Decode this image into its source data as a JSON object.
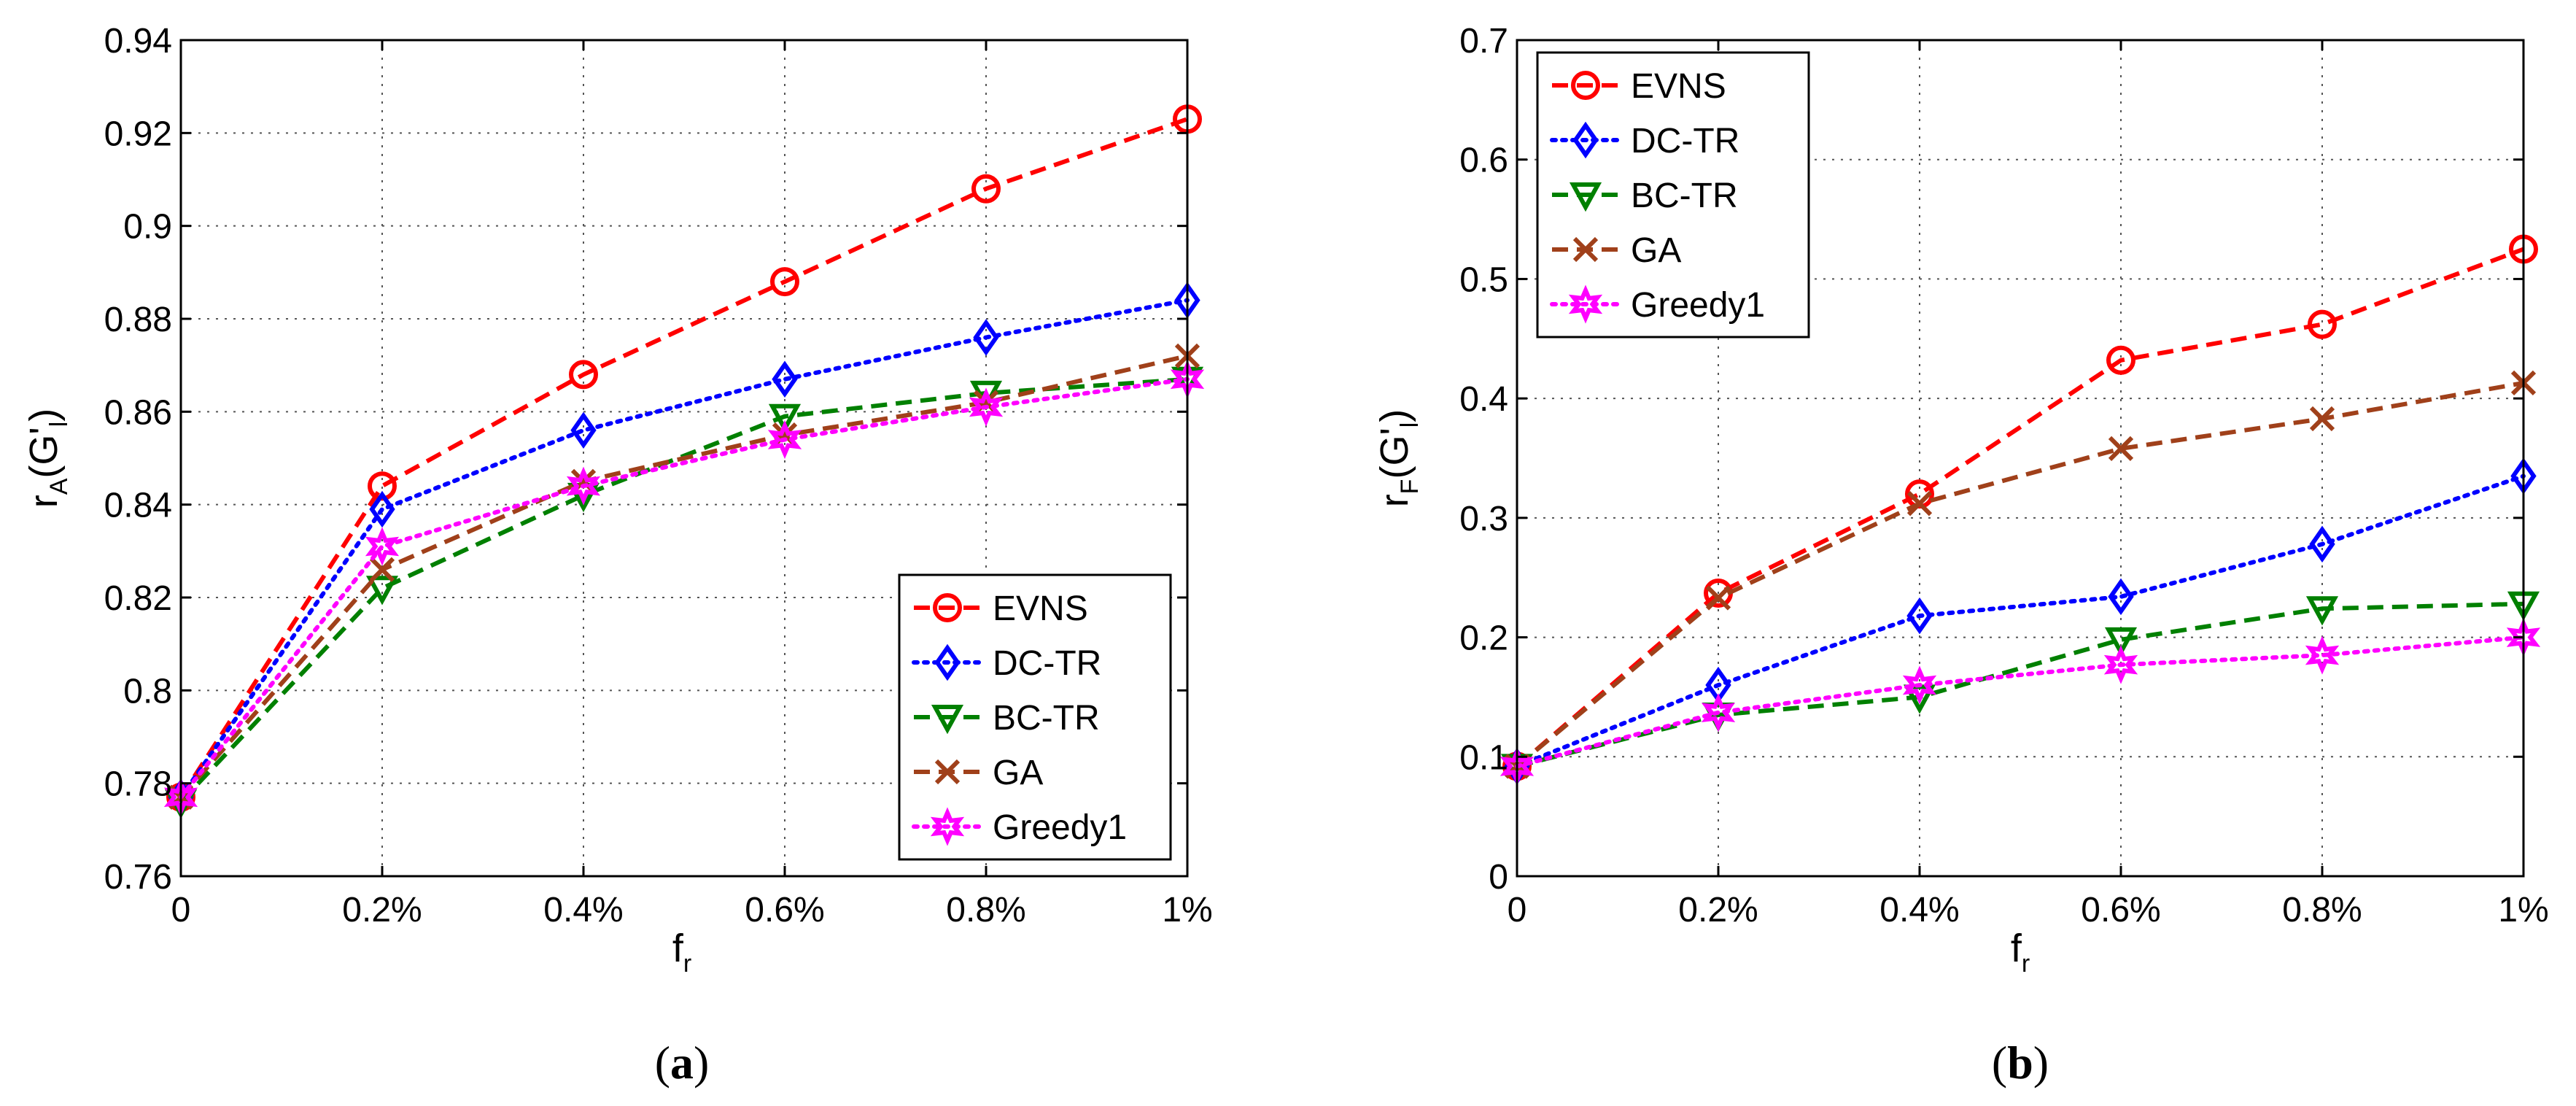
{
  "colors": {
    "EVNS": "#ff0000",
    "DC-TR": "#0000ff",
    "BC-TR": "#008000",
    "GA": "#a0401a",
    "Greedy1": "#ff00ff"
  },
  "chart_data": [
    {
      "type": "line",
      "caption_letter": "a",
      "caption_open": "(",
      "caption_close": ")",
      "xlabel_main": "f",
      "xlabel_sub": "r",
      "ylabel_main": "r",
      "ylabel_sub": "A",
      "ylabel_arg": "(G'",
      "ylabel_arg_sub": "l",
      "ylabel_close": ")",
      "categories": [
        "0",
        "0.2%",
        "0.4%",
        "0.6%",
        "0.8%",
        "1%"
      ],
      "ylim": [
        0.76,
        0.94
      ],
      "yticks": [
        0.76,
        0.78,
        0.8,
        0.82,
        0.84,
        0.86,
        0.88,
        0.9,
        0.92,
        0.94
      ],
      "ytick_labels": [
        "0.76",
        "0.78",
        "0.8",
        "0.82",
        "0.84",
        "0.86",
        "0.88",
        "0.9",
        "0.92",
        "0.94"
      ],
      "grid": true,
      "legend_position": "bottom-right",
      "series": [
        {
          "name": "EVNS",
          "marker": "circle",
          "dash": "dashed",
          "values": [
            0.777,
            0.844,
            0.868,
            0.888,
            0.908,
            0.923
          ]
        },
        {
          "name": "DC-TR",
          "marker": "diamond",
          "dash": "dotted",
          "values": [
            0.777,
            0.839,
            0.856,
            0.867,
            0.876,
            0.884
          ]
        },
        {
          "name": "BC-TR",
          "marker": "triangle-down",
          "dash": "dashed",
          "values": [
            0.776,
            0.822,
            0.842,
            0.859,
            0.864,
            0.867
          ]
        },
        {
          "name": "GA",
          "marker": "x",
          "dash": "dashed",
          "values": [
            0.777,
            0.826,
            0.845,
            0.855,
            0.862,
            0.872
          ]
        },
        {
          "name": "Greedy1",
          "marker": "star",
          "dash": "dotted",
          "values": [
            0.777,
            0.831,
            0.844,
            0.854,
            0.861,
            0.867
          ]
        }
      ]
    },
    {
      "type": "line",
      "caption_letter": "b",
      "caption_open": "(",
      "caption_close": ")",
      "xlabel_main": "f",
      "xlabel_sub": "r",
      "ylabel_main": "r",
      "ylabel_sub": "F",
      "ylabel_arg": "(G'",
      "ylabel_arg_sub": "l",
      "ylabel_close": ")",
      "categories": [
        "0",
        "0.2%",
        "0.4%",
        "0.6%",
        "0.8%",
        "1%"
      ],
      "ylim": [
        0,
        0.7
      ],
      "yticks": [
        0,
        0.1,
        0.2,
        0.3,
        0.4,
        0.5,
        0.6,
        0.7
      ],
      "ytick_labels": [
        "0",
        "0.1",
        "0.2",
        "0.3",
        "0.4",
        "0.5",
        "0.6",
        "0.7"
      ],
      "grid": true,
      "legend_position": "top-left",
      "series": [
        {
          "name": "EVNS",
          "marker": "circle",
          "dash": "dashed",
          "values": [
            0.092,
            0.237,
            0.32,
            0.432,
            0.462,
            0.525
          ]
        },
        {
          "name": "DC-TR",
          "marker": "diamond",
          "dash": "dotted",
          "values": [
            0.092,
            0.16,
            0.218,
            0.234,
            0.278,
            0.335
          ]
        },
        {
          "name": "BC-TR",
          "marker": "triangle-down",
          "dash": "dashed",
          "values": [
            0.092,
            0.135,
            0.15,
            0.198,
            0.224,
            0.228
          ]
        },
        {
          "name": "GA",
          "marker": "x",
          "dash": "dashed",
          "values": [
            0.092,
            0.233,
            0.312,
            0.358,
            0.383,
            0.413
          ]
        },
        {
          "name": "Greedy1",
          "marker": "star",
          "dash": "dotted",
          "values": [
            0.092,
            0.137,
            0.16,
            0.177,
            0.185,
            0.2
          ]
        }
      ]
    }
  ]
}
